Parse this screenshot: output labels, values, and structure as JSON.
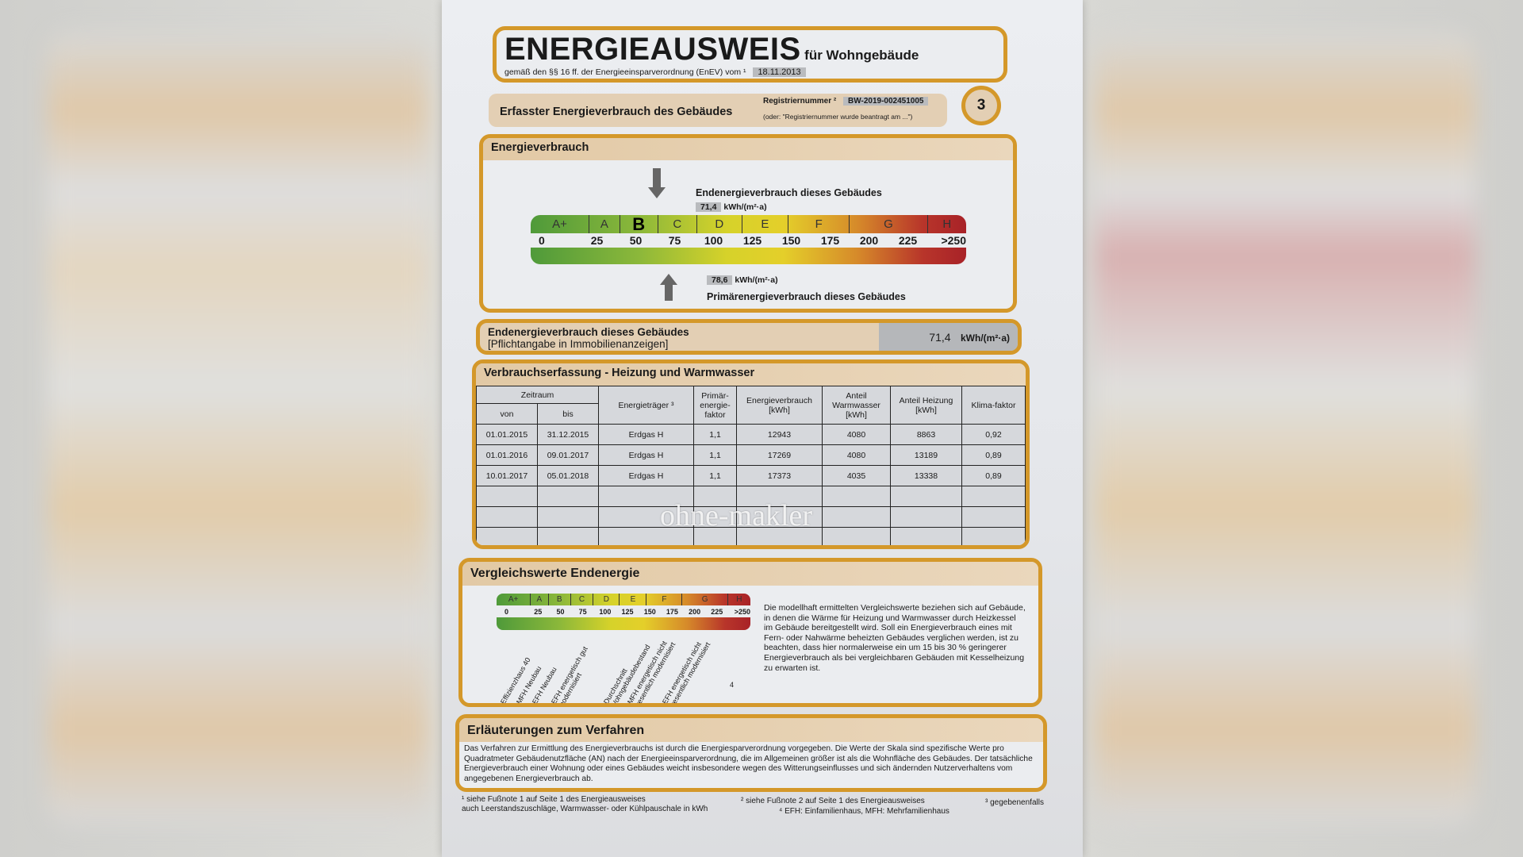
{
  "header": {
    "title": "ENERGIEAUSWEIS",
    "title_suffix": "für Wohngebäude",
    "subtitle": "gemäß den §§ 16 ff. der Energieeinsparverordnung (EnEV) vom ¹",
    "date": "18.11.2013"
  },
  "registration": {
    "section_title": "Erfasster Energieverbrauch des Gebäudes",
    "label": "Registriernummer ²",
    "number": "BW-2019-002451005",
    "note": "(oder: \"Registriernummer wurde beantragt am ...\")",
    "page_number": "3"
  },
  "energieverbrauch": {
    "title": "Energieverbrauch",
    "end_label": "Endenergieverbrauch dieses Gebäudes",
    "end_value": "71,4",
    "unit": "kWh/(m²·a)",
    "primary_value": "78,6",
    "primary_label": "Primärenergieverbrauch dieses Gebäudes",
    "classes": [
      "A+",
      "A",
      "B",
      "C",
      "D",
      "E",
      "F",
      "G",
      "H"
    ],
    "active_class": "B",
    "ticks": [
      "0",
      "25",
      "50",
      "75",
      "100",
      "125",
      "150",
      "175",
      "200",
      "225",
      ">250"
    ]
  },
  "end_summary": {
    "label": "Endenergieverbrauch dieses Gebäudes",
    "sublabel": "[Pflichtangabe in Immobilienanzeigen]",
    "value": "71,4",
    "unit": "kWh/(m²·a)"
  },
  "verbrauch": {
    "title": "Verbrauchserfassung - Heizung und Warmwasser",
    "headers": {
      "zeitraum": "Zeitraum",
      "von": "von",
      "bis": "bis",
      "traeger": "Energieträger ³",
      "faktor": "Primär-energie-faktor",
      "verbrauch": "Energieverbrauch [kWh]",
      "warmwasser": "Anteil Warmwasser [kWh]",
      "heizung": "Anteil Heizung [kWh]",
      "klima": "Klima-faktor"
    },
    "rows": [
      {
        "von": "01.01.2015",
        "bis": "31.12.2015",
        "traeger": "Erdgas H",
        "faktor": "1,1",
        "verbrauch": "12943",
        "warmwasser": "4080",
        "heizung": "8863",
        "klima": "0,92"
      },
      {
        "von": "01.01.2016",
        "bis": "09.01.2017",
        "traeger": "Erdgas H",
        "faktor": "1,1",
        "verbrauch": "17269",
        "warmwasser": "4080",
        "heizung": "13189",
        "klima": "0,89"
      },
      {
        "von": "10.01.2017",
        "bis": "05.01.2018",
        "traeger": "Erdgas H",
        "faktor": "1,1",
        "verbrauch": "17373",
        "warmwasser": "4035",
        "heizung": "13338",
        "klima": "0,89"
      }
    ],
    "watermark": "ohne-makler"
  },
  "vergleich": {
    "title": "Vergleichswerte Endenergie",
    "classes": [
      "A+",
      "A",
      "B",
      "C",
      "D",
      "E",
      "F",
      "G",
      "H"
    ],
    "ticks": [
      "0",
      "25",
      "50",
      "75",
      "100",
      "125",
      "150",
      "175",
      "200",
      "225",
      ">250"
    ],
    "markers": [
      "Effizienzhaus 40",
      "MFH Neubau",
      "EFH Neubau",
      "EFH energetisch gut modernisiert",
      "Durchschnitt Wohngebäudebestand",
      "MFH energetisch nicht wesentlich modernisiert",
      "EFH energetisch nicht wesentlich modernisiert"
    ],
    "footnote_mark": "4",
    "text": "Die modellhaft ermittelten Vergleichswerte beziehen sich auf Gebäude, in denen die Wärme für Heizung und Warmwasser durch Heizkessel im Gebäude bereitgestellt wird. Soll ein Energieverbrauch eines mit Fern- oder Nahwärme beheizten Gebäudes verglichen werden, ist zu beachten, dass hier normalerweise ein um 15 bis 30 % geringerer Energieverbrauch als bei vergleichbaren Gebäuden mit Kesselheizung zu erwarten ist."
  },
  "erlaeuterung": {
    "title": "Erläuterungen zum Verfahren",
    "text": "Das Verfahren zur Ermittlung des Energieverbrauchs ist durch die Energiesparverordnung vorgegeben. Die Werte der Skala sind spezifische Werte pro Quadratmeter Gebäudenutzfläche (AN) nach der Energieeinsparverordnung, die im Allgemeinen größer ist als die Wohnfläche des Gebäudes. Der tatsächliche Energieverbrauch einer Wohnung oder eines Gebäudes weicht insbesondere wegen des Witterungseinflusses und sich ändernden Nutzerverhaltens vom angegebenen Energieverbrauch ab."
  },
  "footnotes": {
    "f1": "¹ siehe Fußnote 1 auf Seite 1 des Energieausweises",
    "f1b": "auch Leerstandszuschläge, Warmwasser- oder Kühlpauschale in kWh",
    "f2": "² siehe Fußnote 2 auf Seite 1 des Energieausweises",
    "f3": "³ gegebenenfalls",
    "f4": "⁴ EFH: Einfamilienhaus, MFH: Mehrfamilienhaus"
  },
  "colors": {
    "frame": "#d4982a",
    "header_band": "#e2c9a5",
    "green": "#4f9a3a",
    "yellow": "#e4cf2a",
    "red": "#a82228"
  }
}
